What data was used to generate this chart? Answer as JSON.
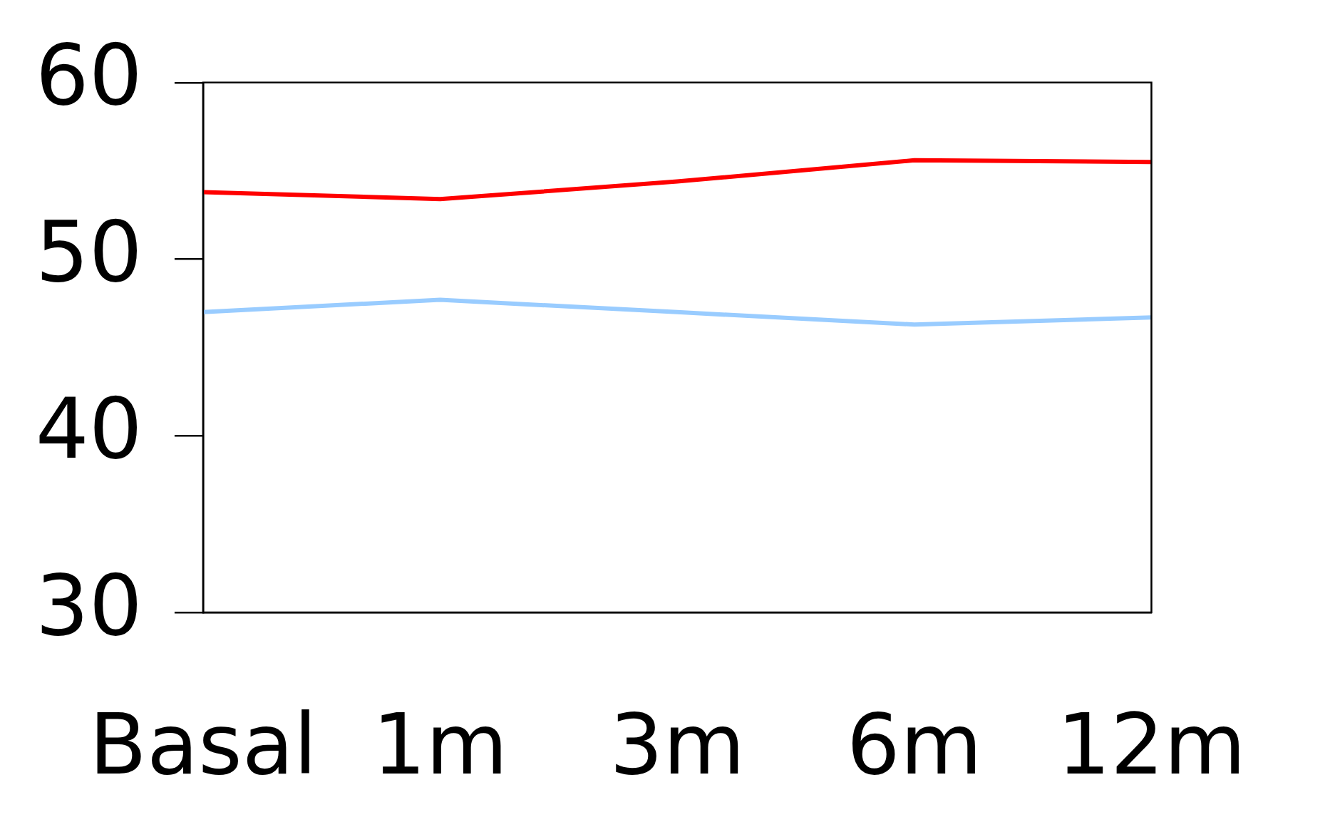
{
  "chart_data": {
    "type": "line",
    "categories": [
      "Basal",
      "1m",
      "3m",
      "6m",
      "12m"
    ],
    "series": [
      {
        "color": "#ff0000",
        "values": [
          53.8,
          53.4,
          54.4,
          55.6,
          55.5
        ]
      },
      {
        "color": "#99ccff",
        "values": [
          47.0,
          47.7,
          47.0,
          46.3,
          46.7
        ]
      }
    ],
    "ylim": [
      30,
      60
    ],
    "yticks": [
      30,
      40,
      50,
      60
    ],
    "grid": false,
    "legend": false,
    "marker": "none",
    "line_style": "solid"
  }
}
